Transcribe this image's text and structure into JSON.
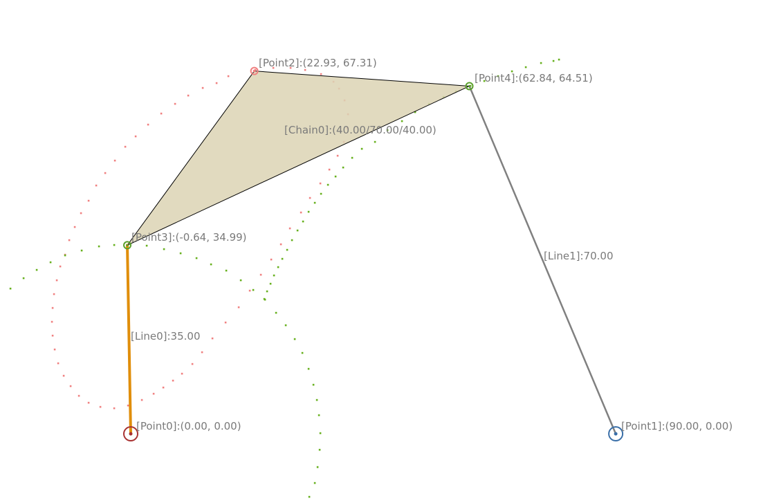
{
  "diagram": {
    "points": [
      {
        "id": "point0",
        "label": "[Point0]:(0.00, 0.00)",
        "x": 0.0,
        "y": 0.0,
        "color": "#a83232",
        "kind": "ground"
      },
      {
        "id": "point1",
        "label": "[Point1]:(90.00, 0.00)",
        "x": 90.0,
        "y": 0.0,
        "color": "#3a6fa8",
        "kind": "ground"
      },
      {
        "id": "point2",
        "label": "[Point2]:(22.93, 67.31)",
        "x": 22.93,
        "y": 67.31,
        "color": "#f08080",
        "kind": "tracer"
      },
      {
        "id": "point3",
        "label": "[Point3]:(-0.64, 34.99)",
        "x": -0.64,
        "y": 34.99,
        "color": "#5aa02c",
        "kind": "joint"
      },
      {
        "id": "point4",
        "label": "[Point4]:(62.84, 64.51)",
        "x": 62.84,
        "y": 64.51,
        "color": "#5aa02c",
        "kind": "joint"
      }
    ],
    "links": [
      {
        "id": "line0",
        "label": "[Line0]:35.00",
        "from": "point0",
        "to": "point3",
        "color": "#e08e0b"
      },
      {
        "id": "line1",
        "label": "[Line1]:70.00",
        "from": "point1",
        "to": "point4",
        "color": "#808080"
      }
    ],
    "chain": {
      "id": "chain0",
      "label": "[Chain0]:(40.00/70.00/40.00)",
      "vertices": [
        "point2",
        "point3",
        "point4"
      ],
      "fill": "#dcd4b4"
    },
    "paths": {
      "point2_color": "#f08080",
      "joint_color": "#66b01c"
    }
  }
}
